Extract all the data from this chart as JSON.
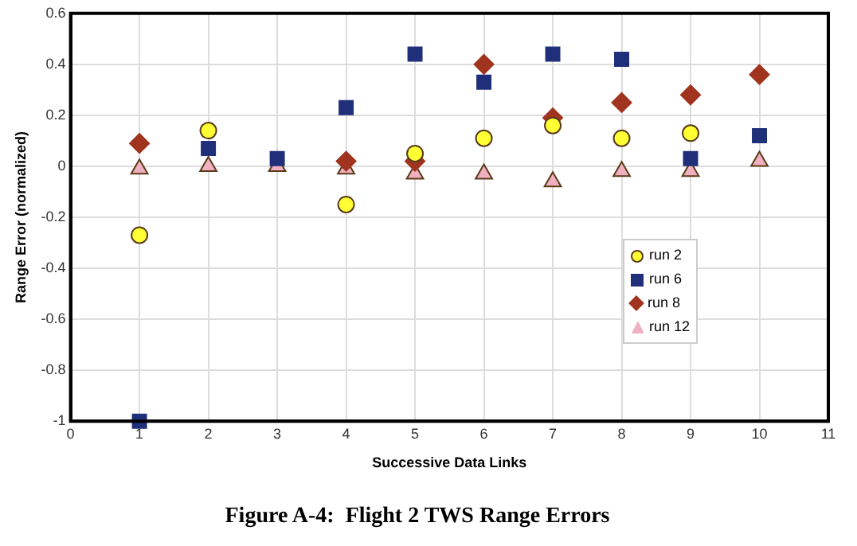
{
  "chart_data": {
    "type": "scatter",
    "title": "Figure A-4:  Flight 2 TWS Range Errors",
    "xlabel": "Successive Data Links",
    "ylabel": "Range Error (normalized)",
    "x": [
      1,
      2,
      3,
      4,
      5,
      6,
      7,
      8,
      9,
      10
    ],
    "series": [
      {
        "name": "run 2",
        "color": "#ffff33",
        "marker": "circle",
        "values": [
          -0.27,
          0.14,
          null,
          -0.15,
          0.05,
          0.11,
          0.16,
          0.11,
          0.13,
          null
        ]
      },
      {
        "name": "run 6",
        "color": "#1f2f7a",
        "marker": "square",
        "values": [
          -1,
          0.07,
          0.03,
          0.23,
          0.44,
          0.33,
          0.44,
          0.42,
          0.03,
          0.12
        ]
      },
      {
        "name": "run 8",
        "color": "#a0341e",
        "marker": "diamond",
        "values": [
          0.09,
          null,
          null,
          0.02,
          0.02,
          0.4,
          0.19,
          0.25,
          0.28,
          0.36
        ]
      },
      {
        "name": "run 12",
        "color": "#f0b0c0",
        "marker": "triangle",
        "values": [
          -0.01,
          0,
          0,
          -0.01,
          -0.03,
          -0.03,
          -0.06,
          -0.02,
          -0.02,
          0.02
        ]
      }
    ],
    "xlim": [
      0,
      11
    ],
    "xticks": [
      0,
      1,
      2,
      3,
      4,
      5,
      6,
      7,
      8,
      9,
      10,
      11
    ],
    "ylim": [
      -1,
      0.6
    ],
    "yticks": [
      -1,
      -0.8,
      -0.6,
      -0.4,
      -0.2,
      0,
      0.2,
      0.4,
      0.6
    ],
    "grid": true,
    "legend": "right"
  }
}
